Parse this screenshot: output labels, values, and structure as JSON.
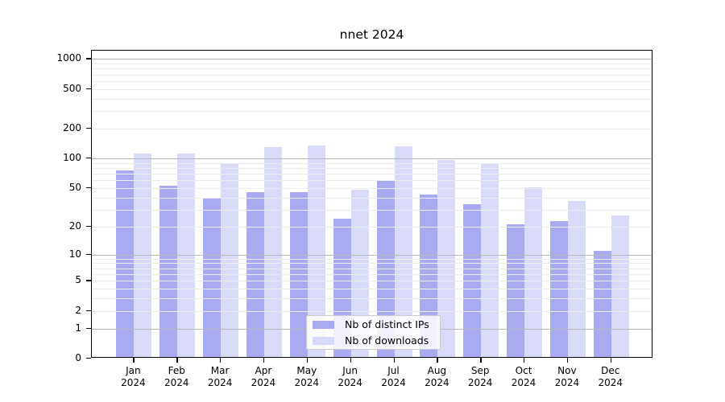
{
  "chart_data": {
    "type": "bar",
    "title": "nnet 2024",
    "categories": [
      "Jan",
      "Feb",
      "Mar",
      "Apr",
      "May",
      "Jun",
      "Jul",
      "Aug",
      "Sep",
      "Oct",
      "Nov",
      "Dec"
    ],
    "category_year": "2024",
    "series": [
      {
        "name": "Nb of distinct IPs",
        "color": "#aaaaf0",
        "values": [
          76,
          53,
          39,
          45,
          45,
          24,
          60,
          43,
          34,
          21,
          23,
          11
        ]
      },
      {
        "name": "Nb of downloads",
        "color": "#d9d9f8",
        "values": [
          113,
          112,
          89,
          130,
          134,
          48,
          133,
          97,
          87,
          51,
          37,
          26
        ]
      }
    ],
    "y_scale": "log10(1+x)",
    "y_ticks": [
      0,
      1,
      2,
      5,
      10,
      20,
      50,
      100,
      200,
      500,
      1000
    ],
    "y_max": 1000,
    "grid": {
      "major": [
        1,
        10,
        100,
        1000
      ],
      "minor": [
        2,
        3,
        4,
        5,
        6,
        7,
        8,
        9,
        20,
        30,
        40,
        50,
        60,
        70,
        80,
        90,
        200,
        300,
        400,
        500,
        600,
        700,
        800,
        900
      ],
      "major_color": "#b8b8b8",
      "minor_color": "#ececec"
    },
    "legend_position": "inside-bottom-center",
    "axis_color": "#000000",
    "background_color": "#ffffff"
  }
}
